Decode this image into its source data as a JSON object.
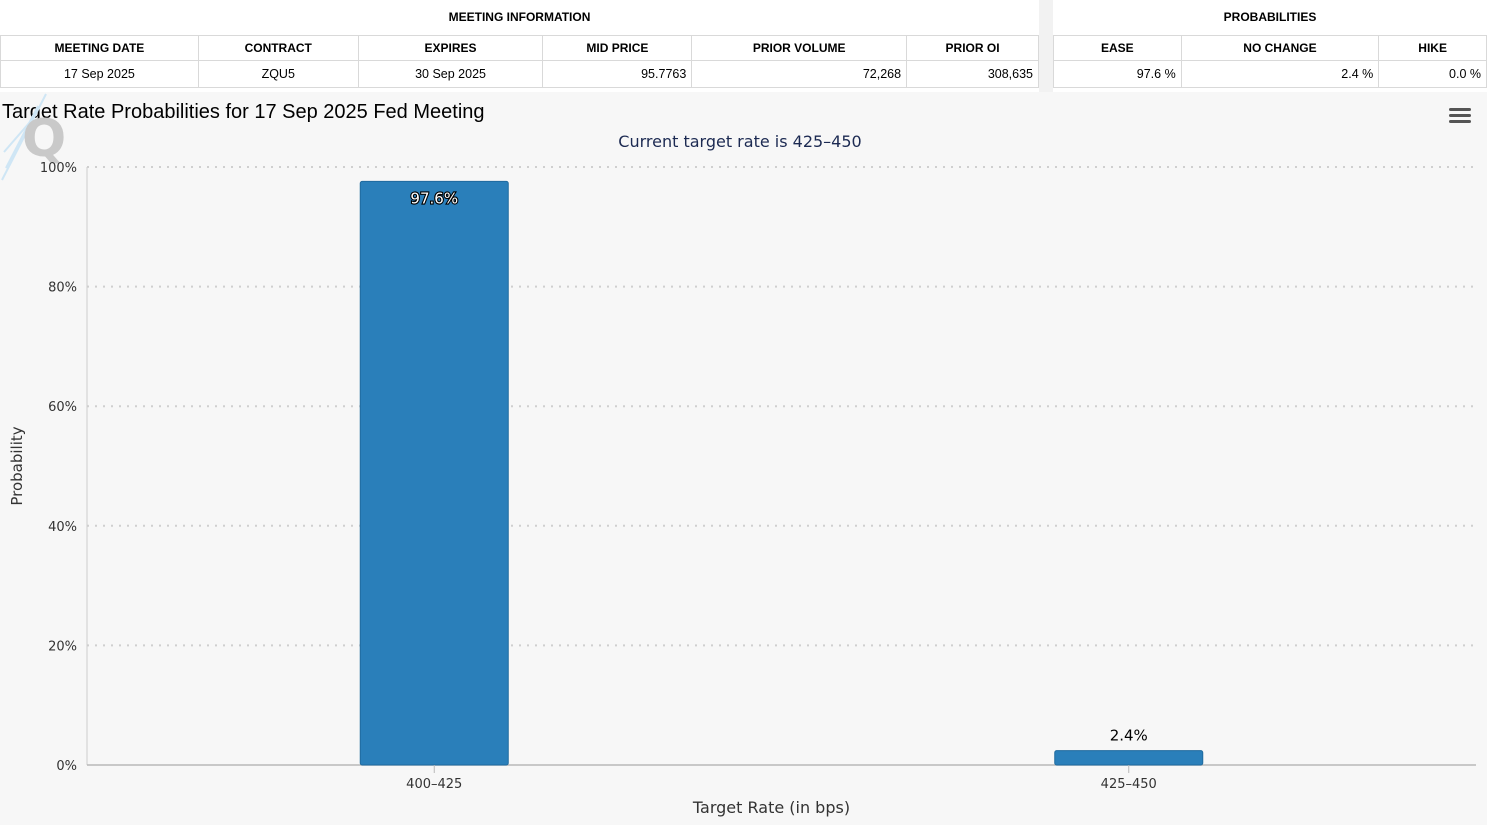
{
  "meeting_info": {
    "section_title": "MEETING INFORMATION",
    "headers": [
      "MEETING DATE",
      "CONTRACT",
      "EXPIRES",
      "MID PRICE",
      "PRIOR VOLUME",
      "PRIOR OI"
    ],
    "row": [
      "17 Sep 2025",
      "ZQU5",
      "30 Sep 2025",
      "95.7763",
      "72,268",
      "308,635"
    ]
  },
  "probabilities": {
    "section_title": "PROBABILITIES",
    "headers": [
      "EASE",
      "NO CHANGE",
      "HIKE"
    ],
    "row": [
      "97.6 %",
      "2.4 %",
      "0.0 %"
    ]
  },
  "chart_data": {
    "type": "bar",
    "title": "Target Rate Probabilities for 17 Sep 2025 Fed Meeting",
    "subtitle": "Current target rate is 425–450",
    "categories": [
      "400–425",
      "425–450"
    ],
    "values": [
      97.6,
      2.4
    ],
    "data_labels": [
      "97.6%",
      "2.4%"
    ],
    "xlabel": "Target Rate (in bps)",
    "ylabel": "Probability",
    "ylim": [
      0,
      100
    ],
    "yticks": [
      0,
      20,
      40,
      60,
      80,
      100
    ],
    "ytick_labels": [
      "0%",
      "20%",
      "40%",
      "60%",
      "80%",
      "100%"
    ],
    "grid": true,
    "bar_color": "#2a7fba"
  },
  "icons": {
    "menu": "hamburger-menu-icon",
    "logo": "q-logo-icon"
  }
}
